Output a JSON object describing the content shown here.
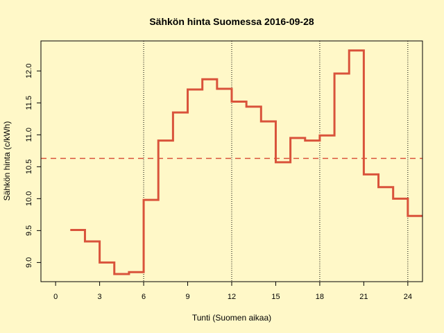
{
  "chart_data": {
    "type": "line",
    "title": "Sähkön hinta Suomessa 2016-09-28",
    "xlabel": "Tunti (Suomen aikaa)",
    "ylabel": "Sähkön hinta (c/kWh)",
    "xlim": [
      -1,
      25
    ],
    "ylim": [
      8.7,
      12.47
    ],
    "x_ticks": [
      "0",
      "3",
      "6",
      "9",
      "12",
      "15",
      "18",
      "21",
      "24"
    ],
    "y_ticks": [
      "9.0",
      "9.5",
      "10.0",
      "10.5",
      "11.0",
      "11.5",
      "12.0"
    ],
    "vertical_reference_lines": [
      6,
      12,
      18,
      24
    ],
    "mean_line": 10.63,
    "line_color": "#d9533b",
    "series": [
      {
        "step": "post",
        "x": [
          1,
          2,
          3,
          4,
          5,
          6,
          7,
          8,
          9,
          10,
          11,
          12,
          13,
          14,
          15,
          16,
          17,
          18,
          19,
          20,
          21,
          22,
          23,
          24,
          25
        ],
        "values": [
          9.51,
          9.33,
          9.0,
          8.82,
          8.85,
          9.98,
          10.91,
          11.35,
          11.71,
          11.87,
          11.72,
          11.52,
          11.44,
          11.21,
          10.57,
          10.95,
          10.91,
          10.99,
          11.96,
          12.32,
          10.38,
          10.18,
          10.0,
          9.73,
          9.73
        ]
      }
    ]
  }
}
